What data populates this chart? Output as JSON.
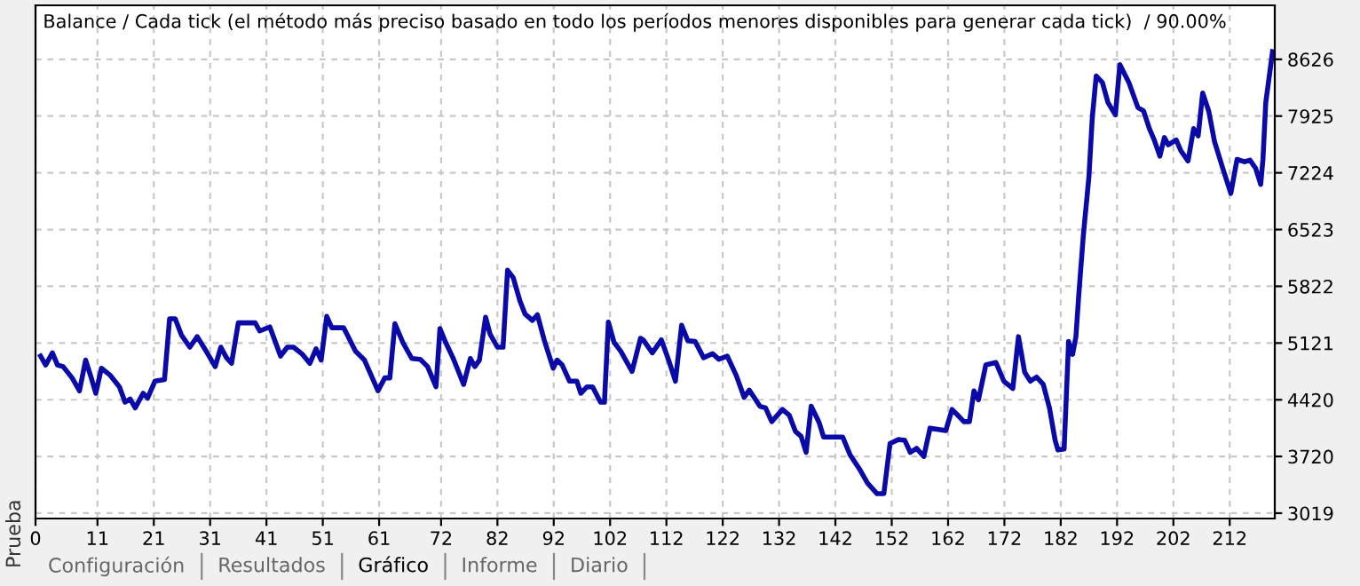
{
  "chart_data": {
    "type": "line",
    "title": "Balance / Cada tick (el método más preciso basado en todo los períodos menores disponibles para generar cada tick)  / 90.00%",
    "annotations": [
      "Prueba",
      "Configuración",
      "Resultados",
      "Gráfico",
      "Informe",
      "Diario"
    ],
    "x": [
      0.9,
      1.8,
      3.0,
      3.9,
      4.9,
      6.5,
      7.8,
      8.9,
      9.9,
      10.7,
      11.7,
      13.3,
      14.9,
      15.9,
      16.8,
      17.7,
      19.1,
      19.9,
      21.2,
      22.9,
      23.8,
      24.8,
      25.9,
      27.4,
      28.7,
      30.3,
      31.9,
      32.9,
      33.9,
      34.8,
      36.0,
      39.0,
      39.8,
      41.6,
      43.5,
      44.7,
      45.8,
      47.4,
      48.7,
      49.8,
      50.7,
      51.7,
      52.6,
      54.7,
      56.8,
      58.4,
      60.8,
      62.0,
      62.9,
      63.8,
      65.2,
      66.8,
      68.3,
      69.6,
      71.1,
      71.8,
      72.8,
      74.1,
      76.0,
      77.2,
      78.0,
      78.8,
      79.9,
      80.7,
      82.0,
      83.0,
      83.8,
      84.8,
      86.0,
      86.9,
      88.2,
      89.1,
      90.3,
      91.9,
      92.6,
      93.5,
      94.8,
      96.1,
      96.8,
      97.9,
      98.9,
      100.3,
      101.0,
      101.7,
      102.7,
      103.9,
      105.9,
      107.4,
      107.9,
      109.5,
      111.1,
      112.4,
      113.6,
      114.7,
      115.8,
      117.1,
      118.6,
      120.2,
      121.3,
      122.8,
      124.4,
      125.8,
      126.7,
      128.6,
      129.6,
      130.7,
      132.6,
      133.8,
      134.9,
      135.9,
      136.8,
      137.7,
      139.1,
      139.9,
      143.3,
      144.6,
      146.4,
      147.7,
      149.4,
      150.6,
      151.7,
      153.2,
      154.3,
      155.3,
      156.4,
      157.7,
      158.8,
      161.6,
      162.7,
      163.7,
      164.8,
      165.8,
      166.6,
      167.4,
      168.7,
      170.5,
      171.9,
      173.5,
      174.5,
      175.6,
      176.6,
      177.7,
      178.9,
      180.0,
      181.0,
      181.5,
      182.6,
      183.4,
      184.1,
      184.7,
      185.2,
      186.0,
      187.0,
      187.6,
      188.3,
      189.4,
      190.4,
      191.7,
      192.5,
      194.1,
      195.7,
      196.7,
      197.8,
      198.6,
      199.6,
      200.4,
      201.1,
      202.5,
      203.3,
      204.6,
      205.6,
      206.4,
      207.2,
      208.3,
      209.3,
      210.9,
      212.2,
      213.3,
      214.6,
      215.6,
      216.6,
      217.5,
      217.9,
      218.4,
      219.6
    ],
    "series": [
      {
        "color": "#0a0aa8",
        "values": [
          4960,
          4850,
          5000,
          4850,
          4830,
          4690,
          4530,
          4910,
          4690,
          4500,
          4810,
          4720,
          4580,
          4390,
          4430,
          4320,
          4500,
          4440,
          4650,
          4670,
          5420,
          5420,
          5220,
          5070,
          5200,
          5020,
          4830,
          5070,
          4940,
          4870,
          5370,
          5370,
          5270,
          5320,
          4960,
          5070,
          5070,
          4980,
          4870,
          5050,
          4910,
          5450,
          5310,
          5310,
          5020,
          4910,
          4530,
          4690,
          4690,
          5360,
          5130,
          4930,
          4920,
          4830,
          4580,
          5300,
          5130,
          4940,
          4610,
          4930,
          4830,
          4910,
          5440,
          5230,
          5070,
          5070,
          6020,
          5930,
          5640,
          5480,
          5400,
          5470,
          5160,
          4810,
          4910,
          4850,
          4650,
          4650,
          4500,
          4580,
          4580,
          4390,
          4390,
          5380,
          5130,
          5020,
          4770,
          5180,
          5160,
          5000,
          5160,
          4910,
          4650,
          5340,
          5150,
          5140,
          4940,
          4990,
          4920,
          4960,
          4720,
          4450,
          4540,
          4340,
          4320,
          4150,
          4300,
          4230,
          4030,
          3970,
          3770,
          4340,
          4140,
          3960,
          3960,
          3740,
          3550,
          3390,
          3260,
          3260,
          3880,
          3930,
          3920,
          3770,
          3820,
          3720,
          4070,
          4040,
          4300,
          4230,
          4150,
          4150,
          4530,
          4420,
          4850,
          4880,
          4650,
          4560,
          5200,
          4760,
          4650,
          4700,
          4610,
          4320,
          3920,
          3800,
          3810,
          5140,
          4980,
          5200,
          5710,
          6440,
          7170,
          7900,
          8420,
          8340,
          8090,
          7940,
          8560,
          8340,
          8030,
          7990,
          7760,
          7630,
          7430,
          7660,
          7570,
          7630,
          7500,
          7370,
          7770,
          7680,
          8210,
          7980,
          7610,
          7250,
          6970,
          7390,
          7360,
          7380,
          7280,
          7080,
          7390,
          8090,
          8720
        ]
      }
    ],
    "xlim": [
      0,
      220
    ],
    "xticks": [
      0,
      11,
      21,
      31,
      41,
      51,
      61,
      72,
      82,
      92,
      102,
      112,
      122,
      132,
      142,
      152,
      162,
      172,
      182,
      192,
      202,
      212
    ],
    "ylim": [
      2953,
      9293
    ],
    "yticks": [
      3019,
      3720,
      4420,
      5121,
      5822,
      6523,
      7224,
      7925,
      8626
    ],
    "grid": true,
    "marker": "none",
    "line_style": "solid"
  }
}
